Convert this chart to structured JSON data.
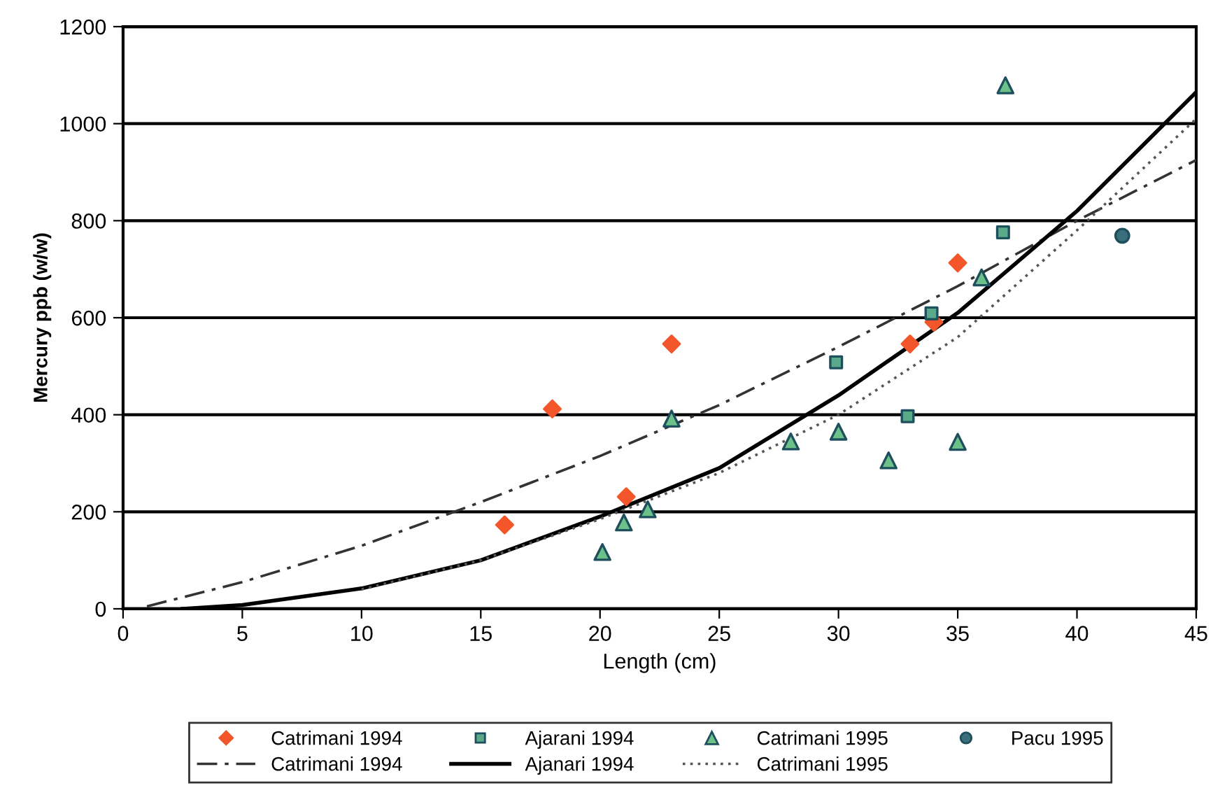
{
  "chart_data": {
    "type": "scatter",
    "xlabel": "Length (cm)",
    "ylabel": "Mercury ppb (w/w)",
    "xlim": [
      0,
      45
    ],
    "xticks": [
      0,
      5,
      10,
      15,
      20,
      25,
      30,
      35,
      40,
      45
    ],
    "ylim": [
      0,
      1200
    ],
    "yticks": [
      0,
      200,
      400,
      600,
      800,
      1000,
      1200
    ],
    "grid": "y",
    "legend": "bottom",
    "series": [
      {
        "name": "Catrimani 1994",
        "marker": "diamond",
        "color": "#f2562a",
        "x": [
          16,
          18,
          21.1,
          23,
          33,
          34,
          35
        ],
        "values": [
          173,
          412,
          231,
          546,
          546,
          591,
          713
        ]
      },
      {
        "name": "Ajarani 1994",
        "marker": "square",
        "color": "#5aaa8a",
        "x": [
          29.9,
          32.9,
          33.9,
          36.9
        ],
        "values": [
          508,
          397,
          609,
          776
        ]
      },
      {
        "name": "Catrimani 1995",
        "marker": "triangle",
        "color": "#6cc08a",
        "x": [
          20.1,
          21,
          22,
          23,
          28,
          30,
          32.1,
          35,
          36,
          37
        ],
        "values": [
          117,
          178,
          205,
          392,
          345,
          365,
          306,
          344,
          683,
          1079
        ]
      },
      {
        "name": "Pacu 1995",
        "marker": "circle",
        "color": "#3a6e7a",
        "x": [
          41.9
        ],
        "values": [
          769
        ]
      },
      {
        "name": "Catrimani 1994",
        "type": "line",
        "line_style": "dashed",
        "color": "#333333",
        "x": [
          1,
          5,
          10,
          15,
          20,
          25,
          30,
          35,
          40,
          45
        ],
        "values": [
          5,
          55,
          130,
          220,
          315,
          420,
          540,
          665,
          800,
          925
        ]
      },
      {
        "name": "Ajanari 1994",
        "type": "line",
        "line_style": "solid",
        "color": "#000000",
        "x": [
          2.5,
          5,
          10,
          15,
          20,
          25,
          30,
          35,
          40,
          45
        ],
        "values": [
          0,
          8,
          42,
          100,
          190,
          290,
          440,
          610,
          820,
          1065
        ]
      },
      {
        "name": "Catrimani 1995",
        "type": "line",
        "line_style": "dotted",
        "color": "#555555",
        "x": [
          10,
          15,
          20,
          25,
          30,
          35,
          40,
          45
        ],
        "values": [
          40,
          100,
          185,
          280,
          400,
          560,
          780,
          1010
        ]
      }
    ]
  }
}
